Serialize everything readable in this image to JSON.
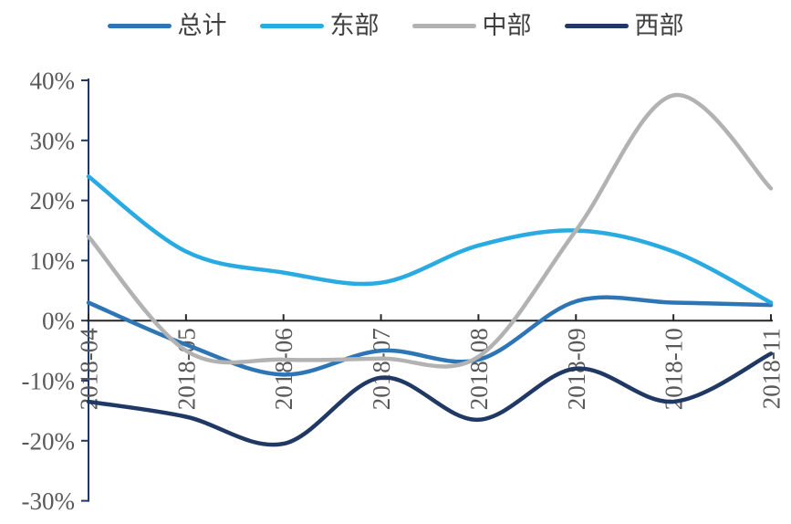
{
  "chart_data": {
    "type": "line",
    "title": "",
    "xlabel": "",
    "ylabel": "",
    "categories": [
      "2018-04",
      "2018-05",
      "2018-06",
      "2018-07",
      "2018-08",
      "2018-09",
      "2018-10",
      "2018-11"
    ],
    "series": [
      {
        "name": "总计",
        "key": "total",
        "color": "#2e75b6",
        "values": [
          3,
          -4,
          -9,
          -5,
          -6.5,
          3.2,
          3,
          2.6
        ]
      },
      {
        "name": "东部",
        "key": "east",
        "color": "#29abe2",
        "values": [
          24,
          11.5,
          8,
          6.3,
          12.5,
          15,
          11.5,
          3
        ]
      },
      {
        "name": "中部",
        "key": "central",
        "color": "#b2b2b2",
        "values": [
          14,
          -5,
          -6.5,
          -6.3,
          -6,
          15,
          37.5,
          22
        ]
      },
      {
        "name": "西部",
        "key": "west",
        "color": "#1f3864",
        "values": [
          -13.5,
          -16,
          -20.5,
          -9.5,
          -16.5,
          -8,
          -13.5,
          -5.5
        ]
      }
    ],
    "y_ticks": [
      "40%",
      "30%",
      "20%",
      "10%",
      "0%",
      "-10%",
      "-20%",
      "-30%"
    ],
    "y_tick_values": [
      40,
      30,
      20,
      10,
      0,
      -10,
      -20,
      -30
    ],
    "ylim": [
      -30,
      40
    ],
    "grid": false,
    "legend_position": "top",
    "x_labels_rotation": -90,
    "colors": {
      "y_axis_line": "#203864",
      "x_axis_line": "#262626",
      "tick_label": "#595959",
      "legend_text": "#404040",
      "background": "#ffffff"
    }
  }
}
